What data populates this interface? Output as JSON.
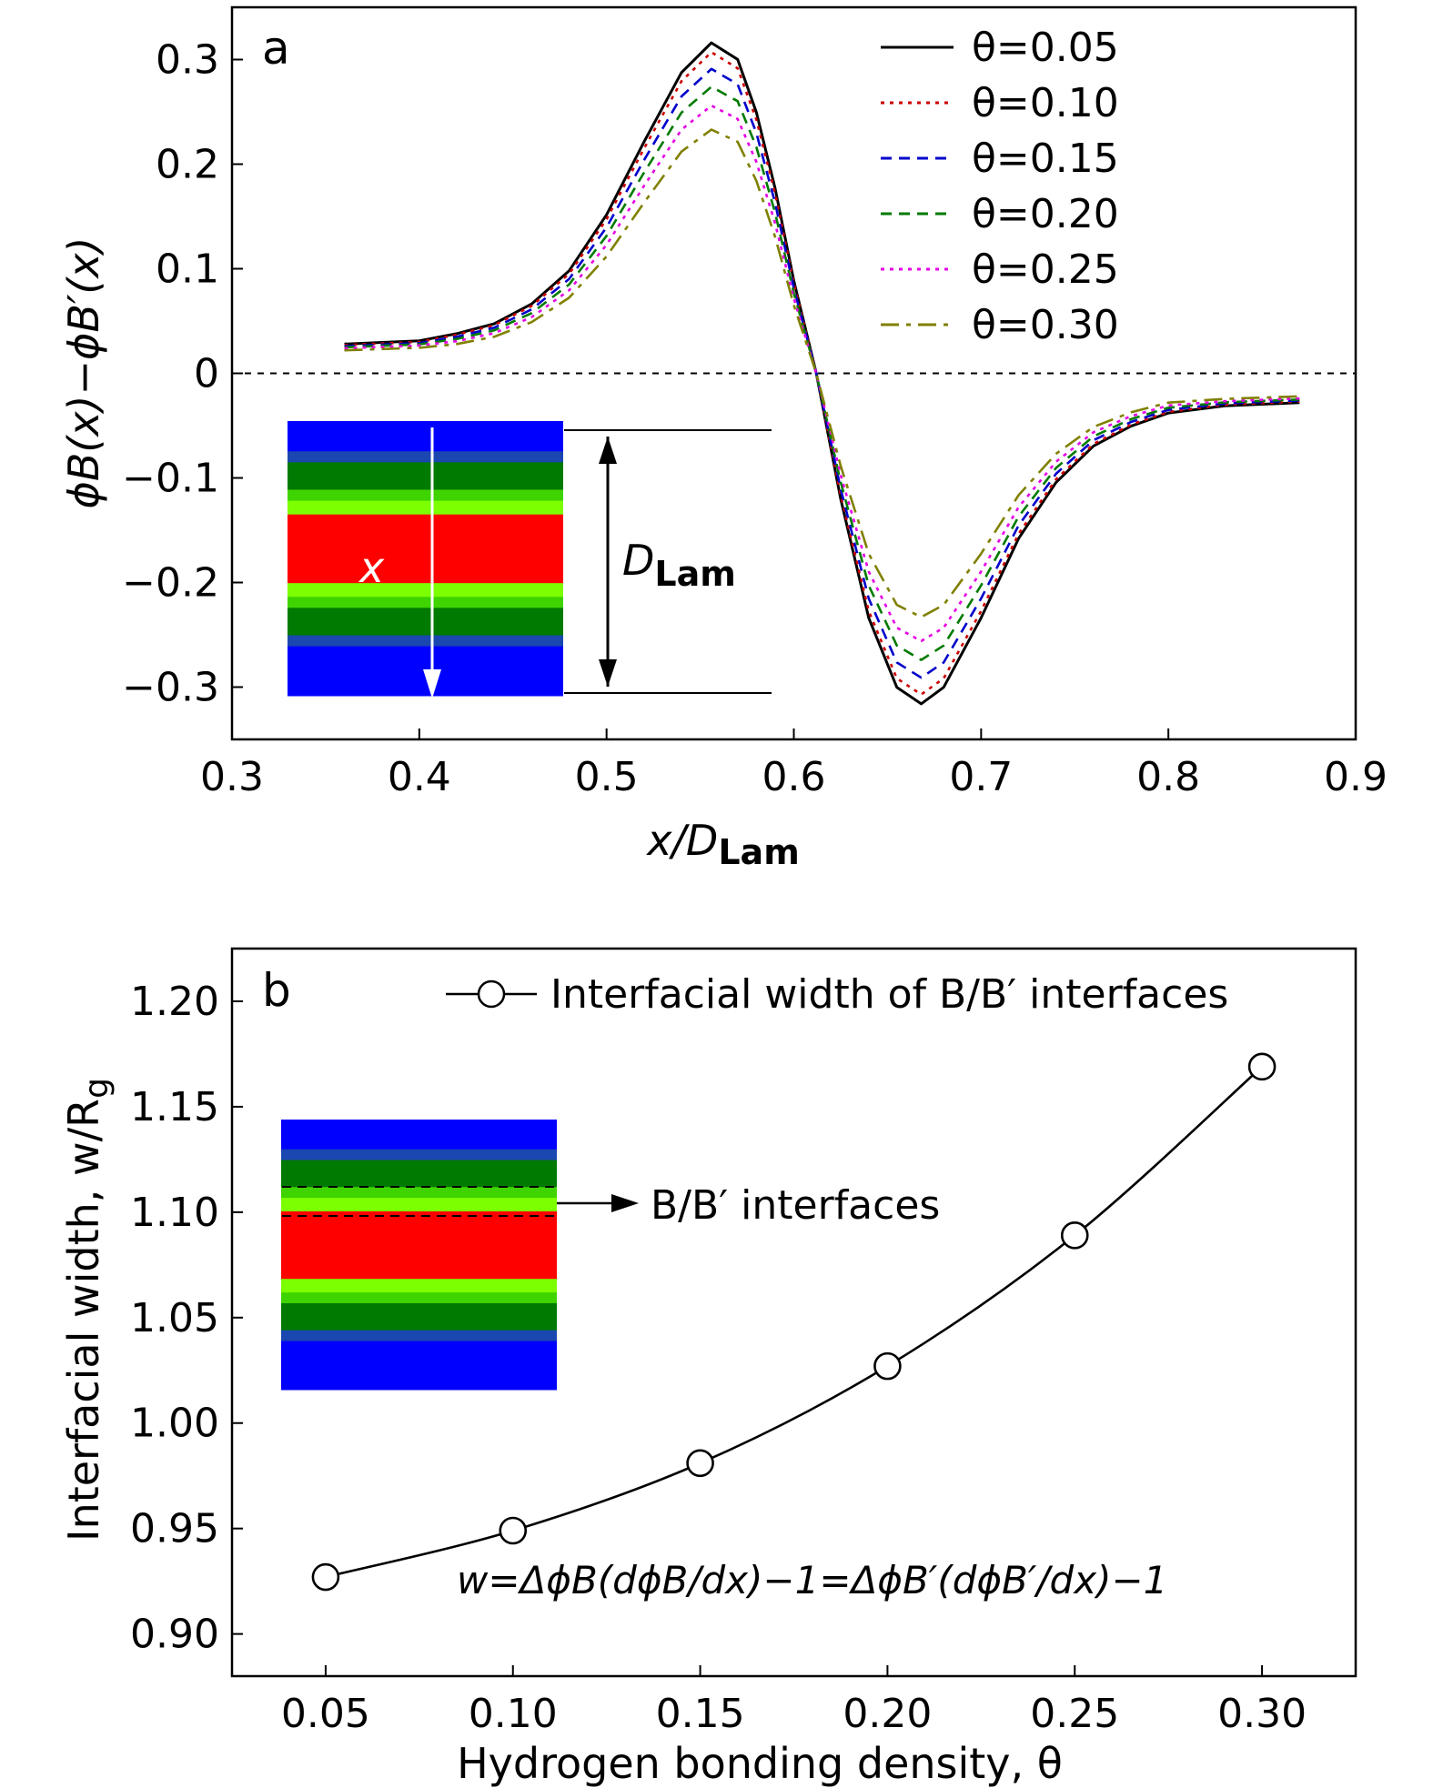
{
  "chart_data": [
    {
      "type": "line",
      "panel_label": "a",
      "xlabel": "x/D",
      "xlabel_sub": "Lam",
      "ylabel": "ϕB(x)−ϕB′(x)",
      "xlim": [
        0.3,
        0.9
      ],
      "ylim": [
        -0.35,
        0.35
      ],
      "x_ticks": [
        "0.3",
        "0.4",
        "0.5",
        "0.6",
        "0.7",
        "0.8",
        "0.9"
      ],
      "y_ticks": [
        "0.3",
        "0.2",
        "0.1",
        "0",
        "−0.1",
        "−0.2",
        "−0.3"
      ],
      "reference_line": 0,
      "legend_position": "top-right",
      "series": [
        {
          "name": "θ=0.05",
          "color": "#000000",
          "dash": "solid",
          "amplitude": 0.316,
          "tail": 0.028
        },
        {
          "name": "θ=0.10",
          "color": "#cc0000",
          "dash": "dotted",
          "amplitude": 0.307,
          "tail": 0.027
        },
        {
          "name": "θ=0.15",
          "color": "#0000cc",
          "dash": "dashed",
          "amplitude": 0.291,
          "tail": 0.026
        },
        {
          "name": "θ=0.20",
          "color": "#007a00",
          "dash": "dashed",
          "amplitude": 0.274,
          "tail": 0.025
        },
        {
          "name": "θ=0.25",
          "color": "#e600e6",
          "dash": "dotted",
          "amplitude": 0.256,
          "tail": 0.024
        },
        {
          "name": "θ=0.30",
          "color": "#808000",
          "dash": "dashdot",
          "amplitude": 0.233,
          "tail": 0.022
        }
      ],
      "curve_x": [
        0.36,
        0.38,
        0.4,
        0.42,
        0.44,
        0.46,
        0.48,
        0.5,
        0.52,
        0.54,
        0.556,
        0.57,
        0.58,
        0.59,
        0.6,
        0.612,
        0.625,
        0.64,
        0.655,
        0.668,
        0.68,
        0.7,
        0.72,
        0.74,
        0.76,
        0.78,
        0.8,
        0.83,
        0.87
      ],
      "curve_shape": [
        0.09,
        0.095,
        0.1,
        0.12,
        0.15,
        0.21,
        0.31,
        0.48,
        0.7,
        0.91,
        1.0,
        0.95,
        0.79,
        0.56,
        0.28,
        0.0,
        -0.38,
        -0.74,
        -0.95,
        -1.0,
        -0.95,
        -0.74,
        -0.5,
        -0.33,
        -0.22,
        -0.16,
        -0.12,
        -0.1,
        -0.09
      ],
      "inset": {
        "label_x": "x",
        "label_d": "D",
        "label_d_sub": "Lam",
        "bands": [
          "#0000ff",
          "#1a47b0",
          "#007a00",
          "#3fd400",
          "#7cff00",
          "#ff0000",
          "#7cff00",
          "#3fd400",
          "#007a00",
          "#1a47b0",
          "#0000ff"
        ]
      }
    },
    {
      "type": "line",
      "panel_label": "b",
      "xlabel": "Hydrogen bonding density, θ",
      "ylabel": "Interfacial width, w/R",
      "ylabel_sub": "g",
      "xlim": [
        0.025,
        0.325
      ],
      "ylim": [
        0.88,
        1.225
      ],
      "x_ticks": [
        "0.05",
        "0.10",
        "0.15",
        "0.20",
        "0.25",
        "0.30"
      ],
      "y_ticks": [
        "1.20",
        "1.15",
        "1.10",
        "1.05",
        "1.00",
        "0.95",
        "0.90"
      ],
      "legend_position": "top",
      "series": [
        {
          "name": "Interfacial width of B/B′ interfaces",
          "color": "#000000",
          "marker": "open-circle",
          "x": [
            0.05,
            0.1,
            0.15,
            0.2,
            0.25,
            0.3
          ],
          "y": [
            0.927,
            0.949,
            0.981,
            1.027,
            1.089,
            1.169
          ]
        }
      ],
      "annotation": "w=ΔϕB(dϕB/dx)−1=ΔϕB′(dϕB′/dx)−1",
      "inset": {
        "arrow_label": "B/B′ interfaces",
        "bands": [
          "#0000ff",
          "#1a47b0",
          "#007a00",
          "#3fd400",
          "#7cff00",
          "#ff0000",
          "#7cff00",
          "#3fd400",
          "#007a00",
          "#1a47b0",
          "#0000ff"
        ]
      }
    }
  ]
}
